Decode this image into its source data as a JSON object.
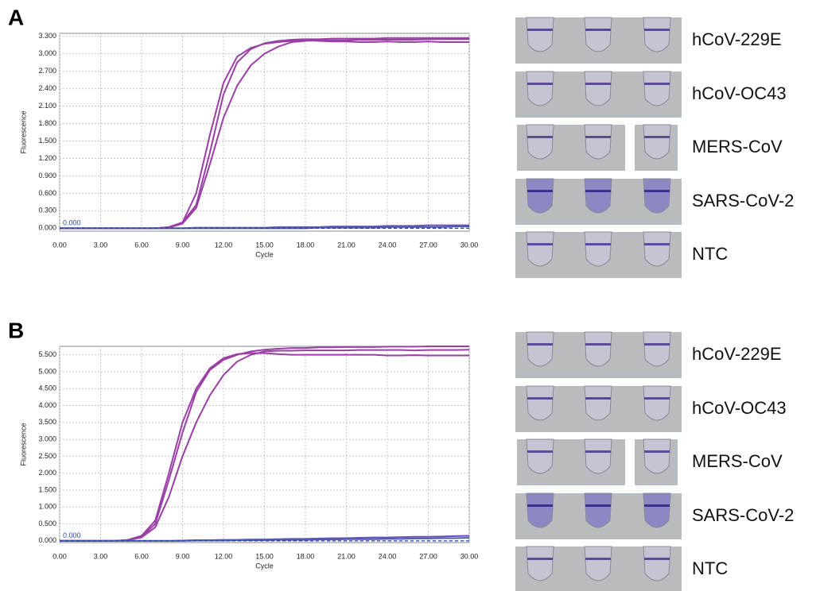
{
  "panels": [
    {
      "label": "A",
      "samples": [
        "hCoV-229E",
        "hCoV-OC43",
        "MERS-CoV",
        "SARS-CoV-2",
        "NTC"
      ]
    },
    {
      "label": "B",
      "samples": [
        "hCoV-229E",
        "hCoV-OC43",
        "MERS-CoV",
        "SARS-CoV-2",
        "NTC"
      ]
    }
  ],
  "chart_data": [
    {
      "type": "line",
      "xlabel": "Cycle",
      "ylabel": "Fluorescence",
      "x": [
        0,
        1,
        2,
        3,
        4,
        5,
        6,
        7,
        8,
        9,
        10,
        11,
        12,
        13,
        14,
        15,
        16,
        17,
        18,
        19,
        20,
        21,
        22,
        23,
        24,
        25,
        26,
        27,
        28,
        29,
        30
      ],
      "xlim": [
        0,
        30
      ],
      "xticks": [
        {
          "value": 0,
          "label": "0.00"
        },
        {
          "value": 3,
          "label": "3.00"
        },
        {
          "value": 6,
          "label": "6.00"
        },
        {
          "value": 9,
          "label": "9.00"
        },
        {
          "value": 12,
          "label": "12.00"
        },
        {
          "value": 15,
          "label": "15.00"
        },
        {
          "value": 18,
          "label": "18.00"
        },
        {
          "value": 21,
          "label": "21.00"
        },
        {
          "value": 24,
          "label": "24.00"
        },
        {
          "value": 27,
          "label": "27.00"
        },
        {
          "value": 30,
          "label": "30.00"
        }
      ],
      "ylim": [
        -0.05,
        3.35
      ],
      "yticks": [
        {
          "value": 0,
          "label": "0.000"
        },
        {
          "value": 0.3,
          "label": "0.300"
        },
        {
          "value": 0.6,
          "label": "0.600"
        },
        {
          "value": 0.9,
          "label": "0.900"
        },
        {
          "value": 1.2,
          "label": "1.200"
        },
        {
          "value": 1.5,
          "label": "1.500"
        },
        {
          "value": 1.8,
          "label": "1.800"
        },
        {
          "value": 2.1,
          "label": "2.100"
        },
        {
          "value": 2.4,
          "label": "2.400"
        },
        {
          "value": 2.7,
          "label": "2.700"
        },
        {
          "value": 3.0,
          "label": "3.000"
        },
        {
          "value": 3.3,
          "label": "3.300"
        }
      ],
      "grid": true,
      "threshold": {
        "value": 0,
        "label": "0.000"
      },
      "series": [
        {
          "color": "#9a3fa6",
          "values": [
            0,
            0,
            0,
            0,
            0,
            0,
            0,
            0,
            0.02,
            0.1,
            0.6,
            1.6,
            2.5,
            2.95,
            3.1,
            3.17,
            3.2,
            3.22,
            3.23,
            3.22,
            3.21,
            3.21,
            3.2,
            3.2,
            3.21,
            3.2,
            3.2,
            3.21,
            3.2,
            3.2,
            3.2
          ]
        },
        {
          "color": "#9a3fa6",
          "values": [
            0,
            0,
            0,
            0,
            0,
            0,
            0,
            0,
            0.02,
            0.1,
            0.4,
            1.3,
            2.3,
            2.85,
            3.08,
            3.18,
            3.22,
            3.24,
            3.25,
            3.25,
            3.26,
            3.26,
            3.26,
            3.26,
            3.27,
            3.27,
            3.27,
            3.27,
            3.27,
            3.27,
            3.27
          ]
        },
        {
          "color": "#9a3fa6",
          "values": [
            0,
            0,
            0,
            0,
            0,
            0,
            0,
            0,
            0.01,
            0.08,
            0.35,
            1.1,
            1.9,
            2.45,
            2.8,
            3.0,
            3.12,
            3.2,
            3.22,
            3.23,
            3.23,
            3.23,
            3.24,
            3.24,
            3.24,
            3.24,
            3.24,
            3.25,
            3.25,
            3.25,
            3.25
          ]
        },
        {
          "color": "#6b4fb2",
          "values": [
            0,
            0,
            0,
            0,
            0,
            0,
            0,
            0,
            0,
            0,
            0.01,
            0.01,
            0.01,
            0.01,
            0.01,
            0.01,
            0.02,
            0.02,
            0.02,
            0.02,
            0.03,
            0.03,
            0.03,
            0.03,
            0.04,
            0.04,
            0.04,
            0.05,
            0.05,
            0.05,
            0.05
          ]
        },
        {
          "color": "#4a5fb0",
          "values": [
            0,
            0,
            0,
            0,
            0,
            0,
            0,
            0,
            0,
            0,
            0,
            0,
            0,
            0,
            0,
            0,
            0,
            0,
            0,
            0.01,
            0.01,
            0.01,
            0.01,
            0.01,
            0.02,
            0.02,
            0.02,
            0.02,
            0.02,
            0.03,
            0.03
          ]
        }
      ]
    },
    {
      "type": "line",
      "xlabel": "Cycle",
      "ylabel": "Fluorescence",
      "x": [
        0,
        1,
        2,
        3,
        4,
        5,
        6,
        7,
        8,
        9,
        10,
        11,
        12,
        13,
        14,
        15,
        16,
        17,
        18,
        19,
        20,
        21,
        22,
        23,
        24,
        25,
        26,
        27,
        28,
        29,
        30
      ],
      "xlim": [
        0,
        30
      ],
      "xticks": [
        {
          "value": 0,
          "label": "0.00"
        },
        {
          "value": 3,
          "label": "3.00"
        },
        {
          "value": 6,
          "label": "6.00"
        },
        {
          "value": 9,
          "label": "9.00"
        },
        {
          "value": 12,
          "label": "12.00"
        },
        {
          "value": 15,
          "label": "15.00"
        },
        {
          "value": 18,
          "label": "18.00"
        },
        {
          "value": 21,
          "label": "21.00"
        },
        {
          "value": 24,
          "label": "24.00"
        },
        {
          "value": 27,
          "label": "27.00"
        },
        {
          "value": 30,
          "label": "30.00"
        }
      ],
      "ylim": [
        -0.05,
        5.75
      ],
      "yticks": [
        {
          "value": 0,
          "label": "0.000"
        },
        {
          "value": 0.5,
          "label": "0.500"
        },
        {
          "value": 1.0,
          "label": "1.000"
        },
        {
          "value": 1.5,
          "label": "1.500"
        },
        {
          "value": 2.0,
          "label": "2.000"
        },
        {
          "value": 2.5,
          "label": "2.500"
        },
        {
          "value": 3.0,
          "label": "3.000"
        },
        {
          "value": 3.5,
          "label": "3.500"
        },
        {
          "value": 4.0,
          "label": "4.000"
        },
        {
          "value": 4.5,
          "label": "4.500"
        },
        {
          "value": 5.0,
          "label": "5.000"
        },
        {
          "value": 5.5,
          "label": "5.500"
        }
      ],
      "grid": true,
      "threshold": {
        "value": 0,
        "label": "0.000"
      },
      "series": [
        {
          "color": "#9a3fa6",
          "values": [
            0,
            0,
            0,
            0,
            0,
            0.03,
            0.15,
            0.6,
            2.0,
            3.5,
            4.5,
            5.1,
            5.4,
            5.52,
            5.55,
            5.55,
            5.52,
            5.5,
            5.5,
            5.5,
            5.5,
            5.5,
            5.5,
            5.5,
            5.48,
            5.48,
            5.49,
            5.48,
            5.48,
            5.48,
            5.48
          ]
        },
        {
          "color": "#9a3fa6",
          "values": [
            0,
            0,
            0,
            0,
            0,
            0.02,
            0.12,
            0.5,
            1.8,
            3.2,
            4.4,
            5.05,
            5.35,
            5.5,
            5.6,
            5.65,
            5.68,
            5.7,
            5.7,
            5.72,
            5.72,
            5.73,
            5.73,
            5.73,
            5.74,
            5.74,
            5.74,
            5.75,
            5.75,
            5.75,
            5.75
          ]
        },
        {
          "color": "#9a3fa6",
          "values": [
            0,
            0,
            0,
            0,
            0,
            0.02,
            0.1,
            0.4,
            1.3,
            2.5,
            3.5,
            4.3,
            4.9,
            5.3,
            5.5,
            5.6,
            5.62,
            5.62,
            5.63,
            5.63,
            5.63,
            5.63,
            5.64,
            5.64,
            5.64,
            5.64,
            5.63,
            5.64,
            5.64,
            5.64,
            5.65
          ]
        },
        {
          "color": "#6b4fb2",
          "values": [
            0,
            0,
            0,
            0,
            0,
            0,
            0,
            0,
            0,
            0.01,
            0.02,
            0.02,
            0.03,
            0.03,
            0.04,
            0.04,
            0.05,
            0.06,
            0.06,
            0.07,
            0.08,
            0.08,
            0.09,
            0.1,
            0.1,
            0.11,
            0.12,
            0.12,
            0.13,
            0.14,
            0.15
          ]
        },
        {
          "color": "#4a5fb0",
          "values": [
            0,
            0,
            0,
            0,
            0,
            0,
            0,
            0,
            0,
            0,
            0.01,
            0.01,
            0.01,
            0.02,
            0.02,
            0.02,
            0.03,
            0.03,
            0.03,
            0.04,
            0.04,
            0.05,
            0.05,
            0.05,
            0.06,
            0.06,
            0.07,
            0.07,
            0.08,
            0.08,
            0.09
          ]
        }
      ]
    }
  ]
}
